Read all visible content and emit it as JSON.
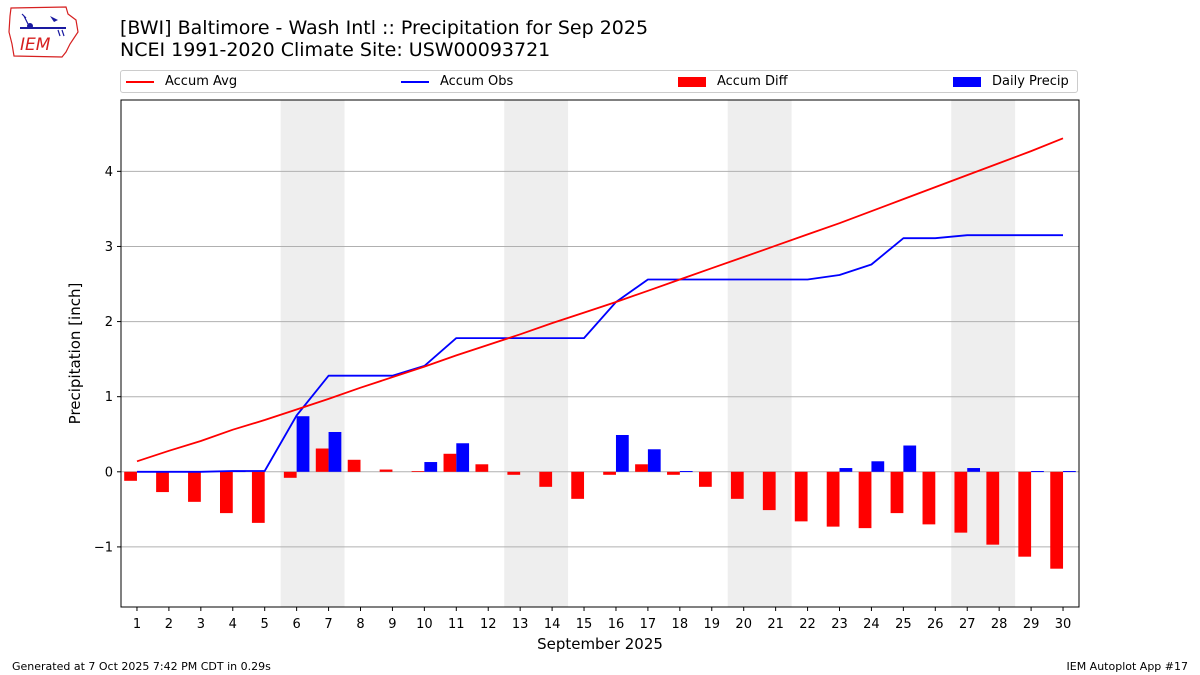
{
  "header": {
    "title_line1": "[BWI] Baltimore - Wash Intl :: Precipitation for Sep 2025",
    "title_line2": "NCEI 1991-2020 Climate Site: USW00093721"
  },
  "logo": {
    "text": "IEM"
  },
  "legend": {
    "accum_avg": "Accum Avg",
    "accum_obs": "Accum Obs",
    "accum_diff": "Accum Diff",
    "daily_precip": "Daily Precip"
  },
  "colors": {
    "avg": "#ff0000",
    "obs": "#0000ff",
    "diff": "#ff0000",
    "daily": "#0000ff",
    "weekend": "#eeeeee",
    "grid": "#b0b0b0"
  },
  "footer": {
    "left": "Generated at 7 Oct 2025 7:42 PM CDT in 0.29s",
    "right": "IEM Autoplot App #17"
  },
  "chart_data": {
    "type": "bar",
    "title": "[BWI] Baltimore - Wash Intl :: Precipitation for Sep 2025",
    "xlabel": "September 2025",
    "ylabel": "Precipitation [inch]",
    "ylim": [
      -1.8,
      4.95
    ],
    "yticks": [
      -1,
      0,
      1,
      2,
      3,
      4
    ],
    "ytick_labels": [
      "−1",
      "0",
      "1",
      "2",
      "3",
      "4"
    ],
    "grid": true,
    "categories": [
      "1",
      "2",
      "3",
      "4",
      "5",
      "6",
      "7",
      "8",
      "9",
      "10",
      "11",
      "12",
      "13",
      "14",
      "15",
      "16",
      "17",
      "18",
      "19",
      "20",
      "21",
      "22",
      "23",
      "24",
      "25",
      "26",
      "27",
      "28",
      "29",
      "30"
    ],
    "weekend_spans": [
      [
        6,
        7
      ],
      [
        13,
        14
      ],
      [
        20,
        21
      ],
      [
        27,
        28
      ]
    ],
    "series": [
      {
        "name": "Accum Avg",
        "kind": "line",
        "values": [
          0.14,
          0.28,
          0.41,
          0.56,
          0.69,
          0.83,
          0.97,
          1.12,
          1.26,
          1.4,
          1.55,
          1.69,
          1.83,
          1.98,
          2.12,
          2.26,
          2.41,
          2.56,
          2.71,
          2.86,
          3.01,
          3.16,
          3.31,
          3.47,
          3.63,
          3.79,
          3.95,
          4.11,
          4.27,
          4.44
        ]
      },
      {
        "name": "Accum Obs",
        "kind": "line",
        "values": [
          0.0,
          0.0,
          0.0,
          0.01,
          0.01,
          0.75,
          1.28,
          1.28,
          1.28,
          1.41,
          1.78,
          1.78,
          1.78,
          1.78,
          1.78,
          2.26,
          2.56,
          2.56,
          2.56,
          2.56,
          2.56,
          2.56,
          2.62,
          2.76,
          3.11,
          3.11,
          3.15,
          3.15,
          3.15,
          3.15
        ]
      },
      {
        "name": "Accum Diff",
        "kind": "bar",
        "values": [
          -0.12,
          -0.27,
          -0.4,
          -0.55,
          -0.68,
          -0.08,
          0.31,
          0.16,
          0.03,
          0.01,
          0.24,
          0.1,
          -0.04,
          -0.2,
          -0.36,
          -0.04,
          0.1,
          -0.04,
          -0.2,
          -0.36,
          -0.51,
          -0.66,
          -0.73,
          -0.75,
          -0.55,
          -0.7,
          -0.81,
          -0.97,
          -1.13,
          -1.29
        ]
      },
      {
        "name": "Daily Precip",
        "kind": "bar",
        "values": [
          0.0,
          0.0,
          0.0,
          0.01,
          0.0,
          0.74,
          0.53,
          0.0,
          0.0,
          0.13,
          0.38,
          0.0,
          0.0,
          0.0,
          0.0,
          0.49,
          0.3,
          0.01,
          0.0,
          0.0,
          0.0,
          0.0,
          0.05,
          0.14,
          0.35,
          0.0,
          0.05,
          0.0,
          0.01,
          0.01
        ]
      }
    ]
  }
}
